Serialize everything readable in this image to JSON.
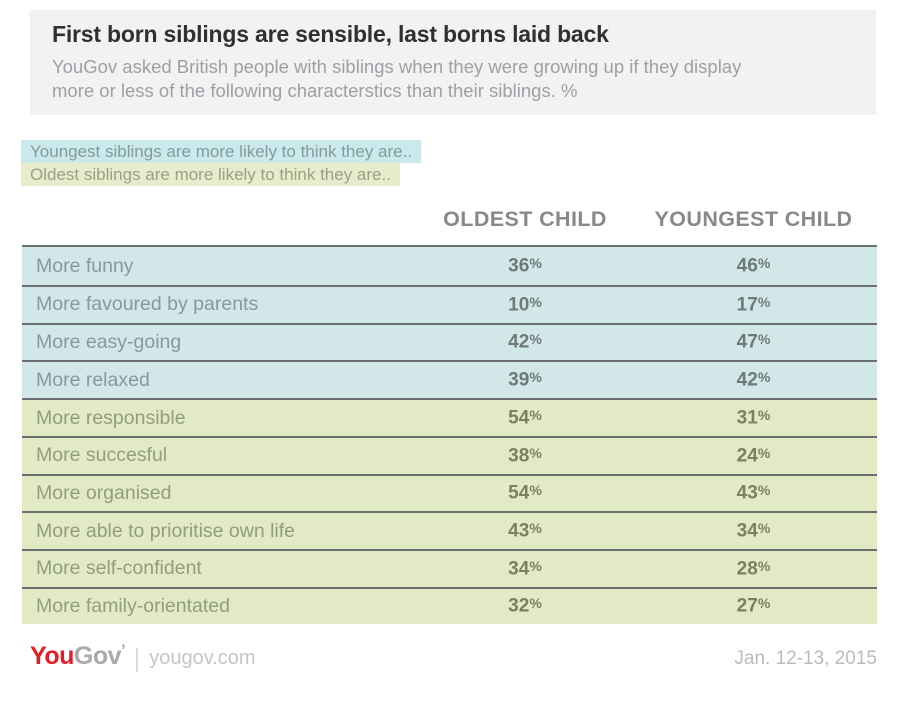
{
  "header": {
    "title": "First born siblings are sensible, last borns laid back",
    "subtitle": "YouGov asked British people with siblings when they were growing up if they display more or less of the following characterstics than their siblings. %"
  },
  "legend": {
    "youngest": "Youngest siblings are more likely to think they are..",
    "oldest": "Oldest siblings are more likely to think they are.."
  },
  "table": {
    "unit": "%",
    "columns": {
      "oldest": "OLDEST CHILD",
      "youngest": "YOUNGEST CHILD"
    },
    "rows": [
      {
        "label": "More funny",
        "oldest": "36",
        "youngest": "46",
        "section": "youngest"
      },
      {
        "label": "More favoured by parents",
        "oldest": "10",
        "youngest": "17",
        "section": "youngest"
      },
      {
        "label": "More easy-going",
        "oldest": "42",
        "youngest": "47",
        "section": "youngest"
      },
      {
        "label": "More relaxed",
        "oldest": "39",
        "youngest": "42",
        "section": "youngest"
      },
      {
        "label": "More responsible",
        "oldest": "54",
        "youngest": "31",
        "section": "oldest"
      },
      {
        "label": "More succesful",
        "oldest": "38",
        "youngest": "24",
        "section": "oldest"
      },
      {
        "label": "More organised",
        "oldest": "54",
        "youngest": "43",
        "section": "oldest"
      },
      {
        "label": "More able to prioritise own life",
        "oldest": "43",
        "youngest": "34",
        "section": "oldest"
      },
      {
        "label": "More self-confident",
        "oldest": "34",
        "youngest": "28",
        "section": "oldest"
      },
      {
        "label": "More family-orientated",
        "oldest": "32",
        "youngest": "27",
        "section": "oldest"
      }
    ]
  },
  "footer": {
    "logo_you": "You",
    "logo_gov": "Gov",
    "logo_tick": "ʼ",
    "site": "yougov.com",
    "date": "Jan. 12-13, 2015"
  },
  "colors": {
    "header_background": "#f2f2f4",
    "title_text": "#303032",
    "subtitle_text": "#9da0a2",
    "youngest_highlight_blue": "#c9e9ec",
    "oldest_highlight_green": "#e7edcc",
    "row_blue": "#d2e7e8",
    "row_green": "#e1e9c5",
    "divider": "#6a6f6f",
    "logo_red": "#e31e26",
    "logo_gray": "#a8aaac"
  },
  "chart_data": {
    "type": "table",
    "title": "First born siblings are sensible, last borns laid back",
    "subtitle": "YouGov asked British people with siblings when they were growing up if they display more or less of the following characterstics than their siblings. %",
    "units": "%",
    "categories": [
      "More funny",
      "More favoured by parents",
      "More easy-going",
      "More relaxed",
      "More responsible",
      "More succesful",
      "More organised",
      "More able to prioritise own life",
      "More self-confident",
      "More family-orientated"
    ],
    "series": [
      {
        "name": "OLDEST CHILD",
        "values": [
          36,
          10,
          42,
          39,
          54,
          38,
          54,
          43,
          34,
          32
        ]
      },
      {
        "name": "YOUNGEST CHILD",
        "values": [
          46,
          17,
          47,
          42,
          31,
          24,
          43,
          34,
          28,
          27
        ]
      }
    ],
    "annotations": [
      "Youngest siblings are more likely to think they are.. (rows 1-4, blue)",
      "Oldest siblings are more likely to think they are.. (rows 5-10, green)"
    ],
    "source": "yougov.com",
    "date_label": "Jan. 12-13, 2015"
  }
}
